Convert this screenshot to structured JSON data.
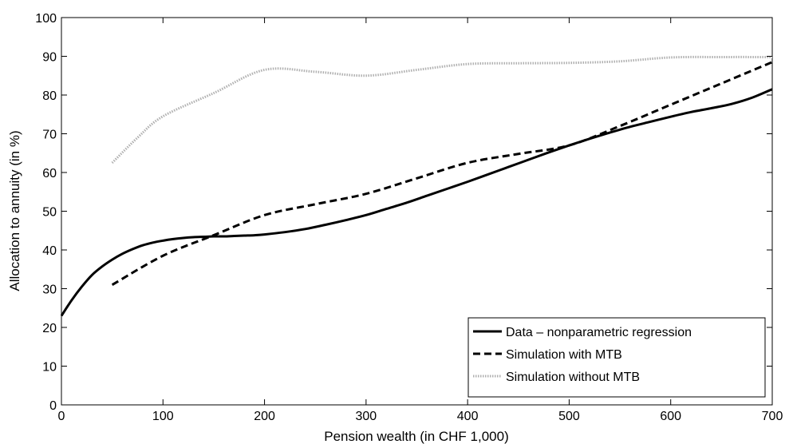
{
  "chart_data": {
    "type": "line",
    "title": "",
    "xlabel": "Pension wealth (in CHF 1,000)",
    "ylabel": "Allocation to annuity (in %)",
    "xlim": [
      0,
      700
    ],
    "ylim": [
      0,
      100
    ],
    "xticks": [
      0,
      100,
      200,
      300,
      400,
      500,
      600,
      700
    ],
    "yticks": [
      0,
      10,
      20,
      30,
      40,
      50,
      60,
      70,
      80,
      90,
      100
    ],
    "grid": false,
    "legend_position": "bottom-right",
    "series": [
      {
        "name": "Data – nonparametric regression",
        "style": "solid",
        "color": "#000000",
        "x": [
          0,
          10,
          20,
          30,
          40,
          50,
          60,
          70,
          80,
          90,
          100,
          110,
          120,
          130,
          140,
          150,
          160,
          170,
          180,
          190,
          200,
          220,
          240,
          260,
          280,
          300,
          320,
          340,
          360,
          380,
          400,
          420,
          440,
          460,
          480,
          500,
          520,
          540,
          560,
          580,
          600,
          620,
          640,
          660,
          680,
          700
        ],
        "y": [
          23,
          27,
          30.5,
          33.5,
          35.7,
          37.5,
          39,
          40.2,
          41.2,
          41.9,
          42.4,
          42.8,
          43.1,
          43.3,
          43.4,
          43.5,
          43.5,
          43.6,
          43.7,
          43.8,
          44,
          44.6,
          45.4,
          46.5,
          47.7,
          49,
          50.6,
          52.2,
          54,
          55.8,
          57.6,
          59.5,
          61.4,
          63.3,
          65.2,
          67,
          68.7,
          70.3,
          71.8,
          73.1,
          74.4,
          75.6,
          76.6,
          77.7,
          79.3,
          81.5
        ]
      },
      {
        "name": "Simulation with MTB",
        "style": "dashed",
        "color": "#000000",
        "x": [
          50,
          100,
          150,
          200,
          250,
          300,
          350,
          400,
          450,
          500,
          550,
          600,
          650,
          700
        ],
        "y": [
          31,
          38.5,
          43.8,
          49,
          51.8,
          54.5,
          58.5,
          62.5,
          64.8,
          67,
          72,
          77.5,
          83,
          88.5
        ]
      },
      {
        "name": "Simulation without MTB",
        "style": "dotted",
        "color": "#b0b0b0",
        "x": [
          50,
          75,
          100,
          150,
          200,
          250,
          300,
          350,
          400,
          450,
          500,
          550,
          600,
          650,
          700
        ],
        "y": [
          62.5,
          69,
          74.5,
          80.5,
          86.5,
          86,
          85,
          86.5,
          88,
          88.2,
          88.3,
          88.7,
          89.7,
          89.8,
          89.8
        ]
      }
    ]
  }
}
